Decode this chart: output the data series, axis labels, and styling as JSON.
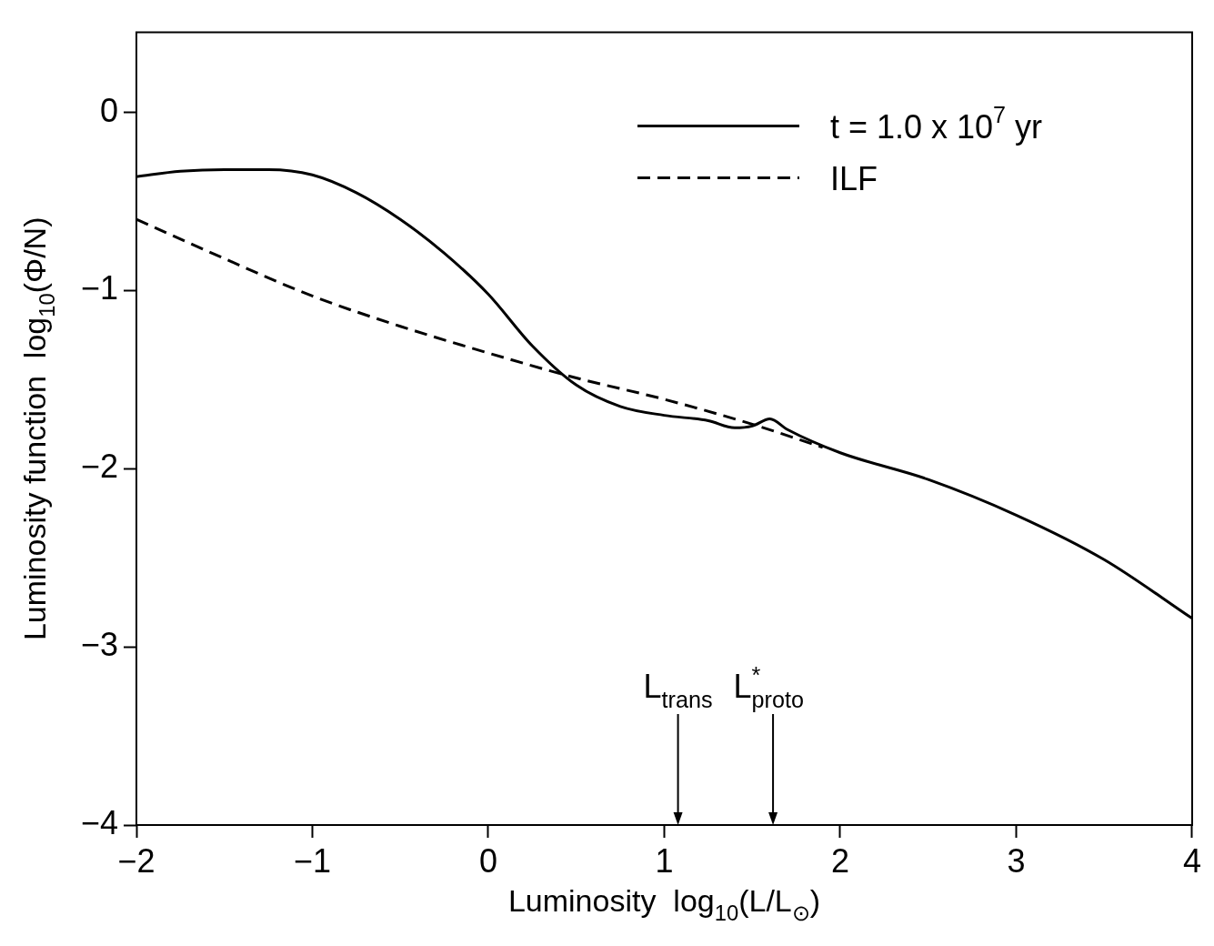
{
  "chart_data": {
    "type": "line",
    "xlabel": "Luminosity  log$_{10}$(L/L$_{⊙}$)",
    "ylabel": "Luminosity function  log$_{10}$(Φ/N)",
    "xlim": [
      -2,
      4
    ],
    "ylim": [
      -4,
      0.45
    ],
    "xticks": [
      -2,
      -1,
      0,
      1,
      2,
      3,
      4
    ],
    "yticks": [
      -4,
      -3,
      -2,
      -1,
      0
    ],
    "grid": false,
    "legend": "top right",
    "marker": "none",
    "series": [
      {
        "name": "t = 1.0 x 10$^{7}$ yr",
        "color": "#000000",
        "line_style": "solid",
        "x": [
          -2,
          -1.75,
          -1.5,
          -1.25,
          -1,
          -0.75,
          -0.5,
          -0.25,
          0,
          0.25,
          0.5,
          0.75,
          1,
          1.25,
          1.4,
          1.5,
          1.6,
          1.7,
          2,
          2.5,
          3,
          3.5,
          4
        ],
        "values": [
          -0.36,
          -0.33,
          -0.32,
          -0.32,
          -0.35,
          -0.45,
          -0.6,
          -0.79,
          -1.02,
          -1.31,
          -1.53,
          -1.65,
          -1.7,
          -1.73,
          -1.77,
          -1.76,
          -1.72,
          -1.78,
          -1.91,
          -2.06,
          -2.26,
          -2.51,
          -2.84
        ]
      },
      {
        "name": "ILF",
        "color": "#000000",
        "line_style": "dashed",
        "x": [
          -2,
          -1.5,
          -1,
          -0.5,
          0,
          0.5,
          1,
          1.5,
          1.9
        ],
        "values": [
          -0.6,
          -0.82,
          -1.03,
          -1.2,
          -1.35,
          -1.49,
          -1.61,
          -1.75,
          -1.88
        ]
      }
    ],
    "annotations": [
      "L$_{trans}$",
      "L$^{*}$$_{proto}$"
    ]
  }
}
